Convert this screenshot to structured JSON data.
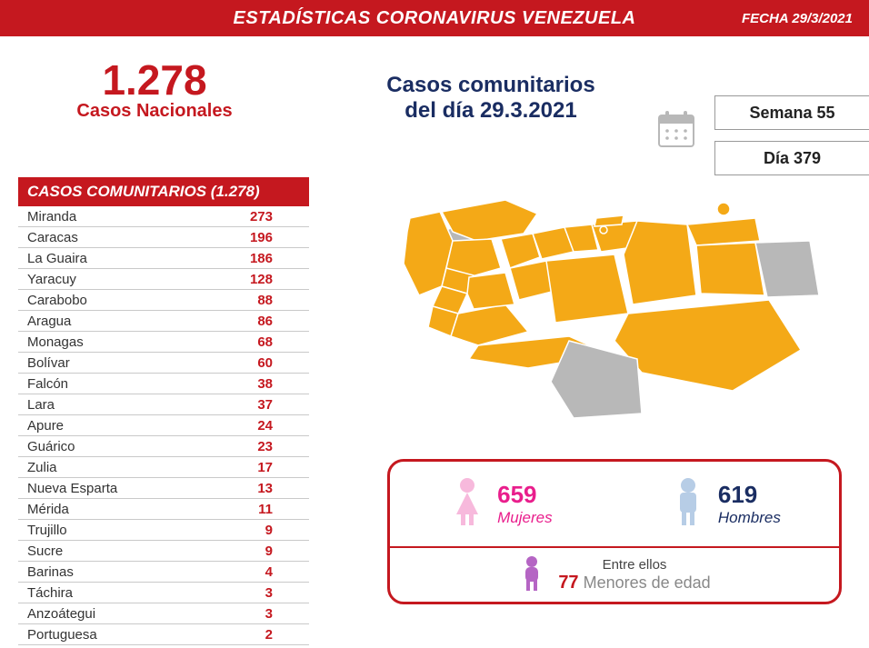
{
  "header": {
    "title": "ESTADÍSTICAS CORONAVIRUS VENEZUELA",
    "date": "FECHA 29/3/2021",
    "bg_color": "#c5181f",
    "text_color": "#ffffff"
  },
  "national": {
    "number": "1.278",
    "label": "Casos Nacionales"
  },
  "main_title": {
    "line1": "Casos comunitarios",
    "line2": "del día 29.3.2021"
  },
  "week": {
    "label": "Semana 55"
  },
  "day": {
    "label": "Día 379"
  },
  "table": {
    "header": "CASOS COMUNITARIOS (1.278)",
    "rows": [
      {
        "region": "Miranda",
        "value": "273"
      },
      {
        "region": "Caracas",
        "value": "196"
      },
      {
        "region": "La Guaira",
        "value": "186"
      },
      {
        "region": "Yaracuy",
        "value": "128"
      },
      {
        "region": "Carabobo",
        "value": "88"
      },
      {
        "region": "Aragua",
        "value": "86"
      },
      {
        "region": "Monagas",
        "value": "68"
      },
      {
        "region": "Bolívar",
        "value": "60"
      },
      {
        "region": "Falcón",
        "value": "38"
      },
      {
        "region": "Lara",
        "value": "37"
      },
      {
        "region": "Apure",
        "value": "24"
      },
      {
        "region": "Guárico",
        "value": "23"
      },
      {
        "region": "Zulia",
        "value": "17"
      },
      {
        "region": "Nueva Esparta",
        "value": "13"
      },
      {
        "region": "Mérida",
        "value": "11"
      },
      {
        "region": "Trujillo",
        "value": "9"
      },
      {
        "region": "Sucre",
        "value": "9"
      },
      {
        "region": "Barinas",
        "value": "4"
      },
      {
        "region": "Táchira",
        "value": "3"
      },
      {
        "region": "Anzoátegui",
        "value": "3"
      },
      {
        "region": "Portuguesa",
        "value": "2"
      }
    ]
  },
  "map": {
    "fill_active": "#f4a917",
    "fill_inactive": "#b8b8b8",
    "stroke": "#ffffff"
  },
  "demographics": {
    "female": {
      "number": "659",
      "label": "Mujeres",
      "color": "#e91e8c"
    },
    "male": {
      "number": "619",
      "label": "Hombres",
      "color": "#1a2d62"
    },
    "minors": {
      "label_top": "Entre ellos",
      "number": "77",
      "label_bottom": "Menores de edad",
      "icon_color": "#b565c4"
    },
    "border_color": "#c5181f"
  },
  "colors": {
    "primary_red": "#c5181f",
    "dark_blue": "#1a2d62",
    "grid": "#c9c9c9"
  }
}
